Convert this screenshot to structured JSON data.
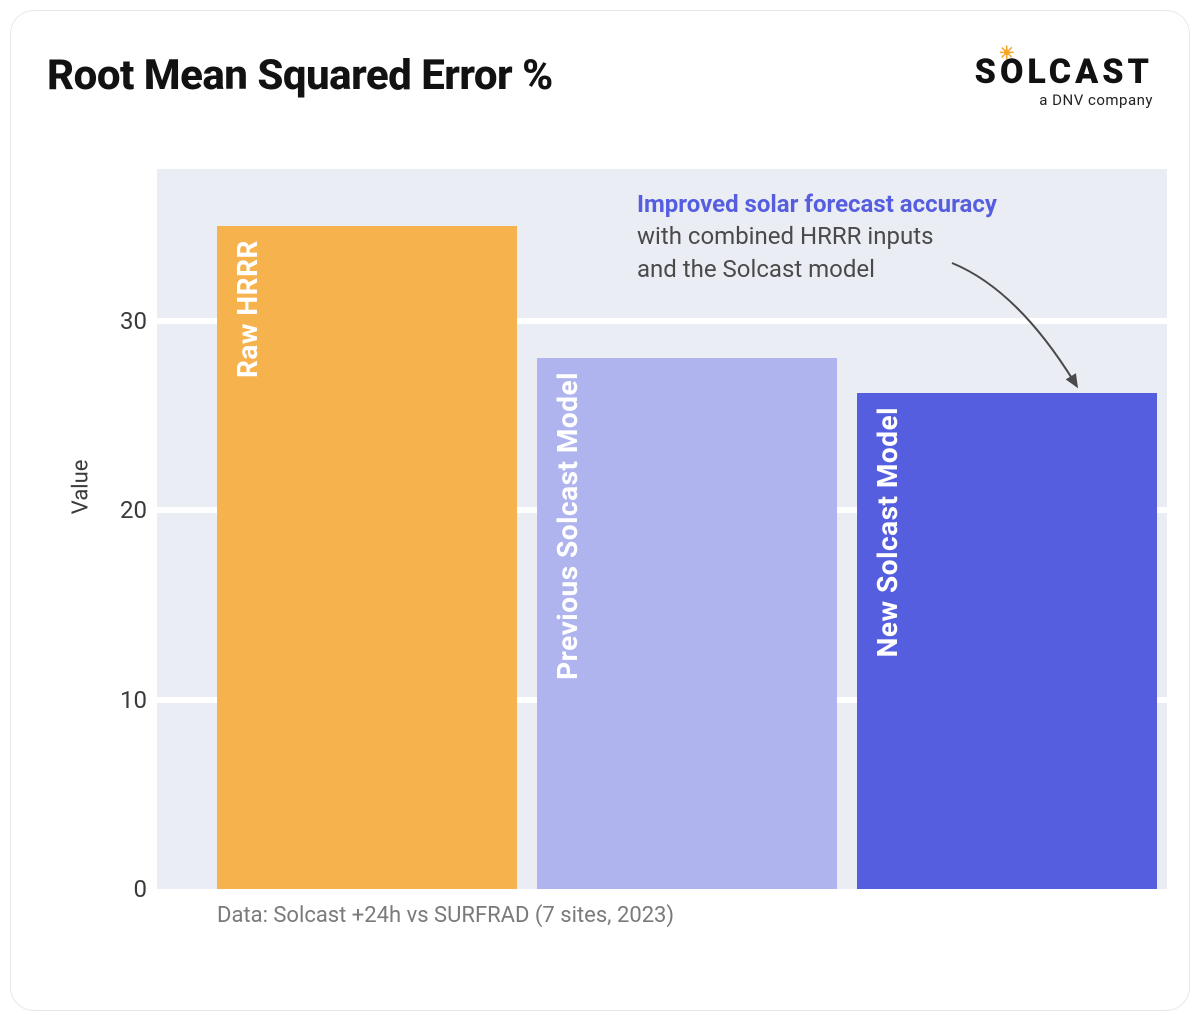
{
  "title": "Root Mean Squared Error %",
  "logo": {
    "text": "SOLCAST",
    "sub": "a DNV company"
  },
  "chart": {
    "type": "bar",
    "background_color": "#ebedf4",
    "gridline_color": "#ffffff",
    "ylabel": "Value",
    "ylim": [
      0,
      38
    ],
    "yticks": [
      0,
      10,
      20,
      30
    ],
    "bars": [
      {
        "label": "Raw HRRR",
        "value": 35,
        "color": "#f6b24c"
      },
      {
        "label": "Previous  Solcast Model",
        "value": 28,
        "color": "#b0b4ee"
      },
      {
        "label": "New Solcast Model",
        "value": 26.2,
        "color": "#565ee0"
      }
    ],
    "bar_label_color": "#ffffff",
    "bar_label_fontsize": 28
  },
  "annotation": {
    "emphasis": "Improved solar forecast accuracy",
    "emphasis_color": "#565ee0",
    "rest1": "with combined HRRR inputs",
    "rest2": "and the Solcast model",
    "arrow_color": "#4a4a4a"
  },
  "caption": "Data: Solcast +24h vs SURFRAD (7 sites, 2023)"
}
